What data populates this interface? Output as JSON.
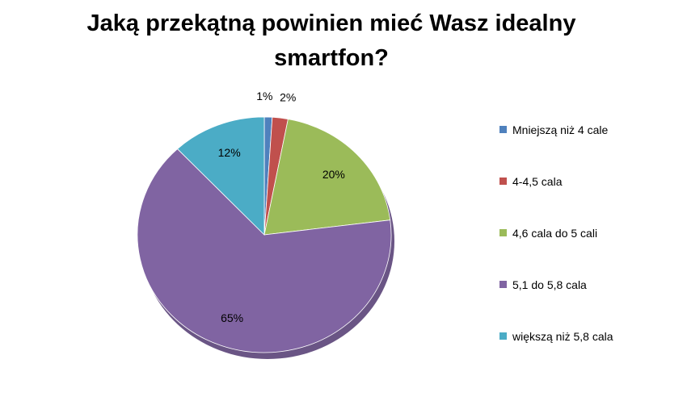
{
  "chart_data": {
    "type": "pie",
    "title": "Jaką przekątną powinien mieć Wasz idealny smartfon?",
    "categories": [
      "Mniejszą niż 4 cale",
      "4-4,5 cala",
      "4,6 cala do 5 cali",
      "5,1 do 5,8 cala",
      "większą niż 5,8 cala"
    ],
    "values": [
      1,
      2,
      20,
      65,
      12
    ],
    "labels": [
      "1%",
      "2%",
      "20%",
      "65%",
      "12%"
    ],
    "colors": [
      "#4F81BD",
      "#C0504D",
      "#9BBB59",
      "#8064A2",
      "#4BACC6"
    ],
    "legend_position": "right"
  }
}
